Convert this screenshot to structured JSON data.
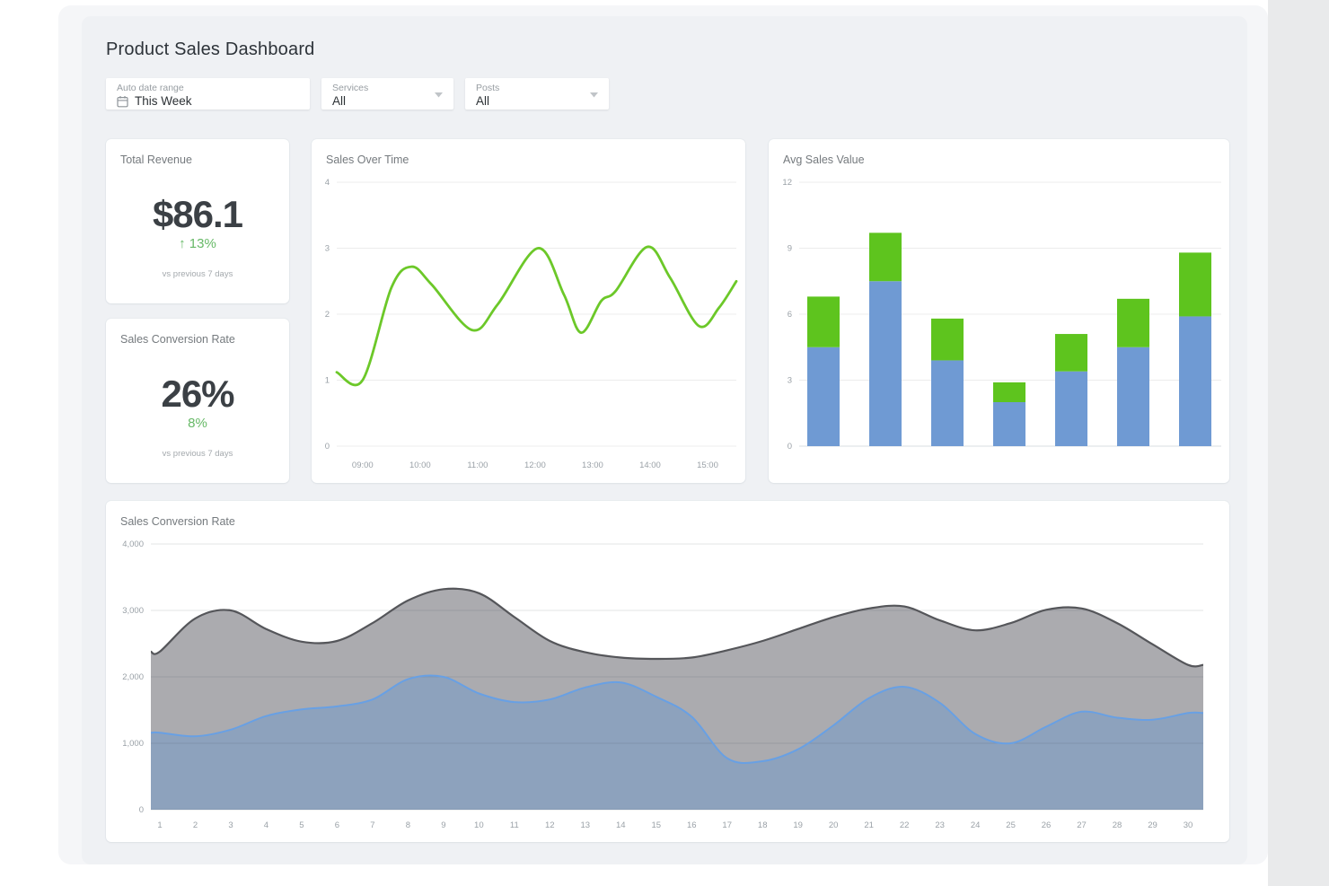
{
  "page": {
    "title": "Product Sales Dashboard"
  },
  "filters": {
    "date_range": {
      "label": "Auto date range",
      "value": "This Week"
    },
    "services": {
      "label": "Services",
      "value": "All"
    },
    "posts": {
      "label": "Posts",
      "value": "All"
    }
  },
  "kpis": [
    {
      "title": "Total Revenue",
      "value": "$86.1",
      "delta": "↑ 13%",
      "caption": "vs previous 7 days"
    },
    {
      "title": "Sales Conversion Rate",
      "value": "26%",
      "delta": "8%",
      "caption": "vs previous 7 days"
    }
  ],
  "colors": {
    "kpi_green": "#67b967",
    "line_green": "#6cc829",
    "bar_blue": "#6f9ad3",
    "bar_green": "#5ec41e",
    "area_gray_stroke": "#55565a",
    "area_blue_stroke": "#68a0e4",
    "panel_bg": "#eff1f4",
    "card_bg": "#ffffff"
  },
  "chart_data": [
    {
      "type": "line",
      "title": "Sales Over Time",
      "xlabel": "",
      "ylabel": "",
      "grid": true,
      "legend": "none",
      "x_domain_hours": [
        8.55,
        15.5
      ],
      "x_ticks": [
        {
          "hour": 9,
          "label": "09:00"
        },
        {
          "hour": 10,
          "label": "10:00"
        },
        {
          "hour": 11,
          "label": "11:00"
        },
        {
          "hour": 12,
          "label": "12:00"
        },
        {
          "hour": 13,
          "label": "13:00"
        },
        {
          "hour": 14,
          "label": "14:00"
        },
        {
          "hour": 15,
          "label": "15:00"
        }
      ],
      "y_ticks": [
        0,
        1,
        2,
        3,
        4
      ],
      "ylim": [
        0,
        4
      ],
      "line_color": "#6cc829",
      "points_hours_values": [
        [
          8.55,
          1.12
        ],
        [
          9.0,
          1.0
        ],
        [
          9.5,
          2.4
        ],
        [
          9.85,
          2.72
        ],
        [
          10.2,
          2.45
        ],
        [
          10.9,
          1.76
        ],
        [
          11.35,
          2.15
        ],
        [
          12.05,
          3.0
        ],
        [
          12.5,
          2.3
        ],
        [
          12.8,
          1.72
        ],
        [
          13.15,
          2.2
        ],
        [
          13.4,
          2.35
        ],
        [
          13.95,
          3.02
        ],
        [
          14.35,
          2.55
        ],
        [
          14.85,
          1.82
        ],
        [
          15.2,
          2.1
        ],
        [
          15.5,
          2.5
        ]
      ]
    },
    {
      "type": "bar",
      "title": "Avg Sales Value",
      "xlabel": "",
      "ylabel": "",
      "grid": true,
      "legend": "none",
      "stacked": true,
      "categories": [
        "",
        "",
        "",
        "",
        "",
        "",
        ""
      ],
      "y_ticks": [
        0,
        3,
        6,
        9,
        12
      ],
      "ylim": [
        0,
        12
      ],
      "series": [
        {
          "name": "base",
          "color": "#6f9ad3",
          "values": [
            4.5,
            7.5,
            3.9,
            2.0,
            3.4,
            4.5,
            5.9
          ]
        },
        {
          "name": "upper",
          "color": "#5ec41e",
          "values": [
            2.3,
            2.2,
            1.9,
            0.9,
            1.7,
            2.2,
            2.9
          ]
        }
      ],
      "totals": [
        6.8,
        9.7,
        5.8,
        2.9,
        5.1,
        6.7,
        8.8
      ]
    },
    {
      "type": "area",
      "title": "Sales Conversion Rate",
      "xlabel": "",
      "ylabel": "",
      "grid": true,
      "legend": "none",
      "x": [
        1,
        2,
        3,
        4,
        5,
        6,
        7,
        8,
        9,
        10,
        11,
        12,
        13,
        14,
        15,
        16,
        17,
        18,
        19,
        20,
        21,
        22,
        23,
        24,
        25,
        26,
        27,
        28,
        29,
        30
      ],
      "y_ticks": [
        0,
        1000,
        2000,
        3000,
        4000
      ],
      "y_tick_labels": [
        "0",
        "1,000",
        "2,000",
        "3,000",
        "4,000"
      ],
      "ylim": [
        0,
        4000
      ],
      "series": [
        {
          "name": "gray-area",
          "stroke": "#55565a",
          "fill": "rgba(148,148,153,0.78)",
          "values": [
            2380,
            2880,
            3000,
            2720,
            2530,
            2540,
            2810,
            3150,
            3320,
            3260,
            2900,
            2540,
            2370,
            2290,
            2270,
            2290,
            2400,
            2540,
            2720,
            2900,
            3030,
            3060,
            2850,
            2700,
            2810,
            3010,
            3030,
            2810,
            2490,
            2180
          ]
        },
        {
          "name": "blue-area",
          "stroke": "#68a0e4",
          "fill": "rgba(122,156,199,0.62)",
          "values": [
            1160,
            1105,
            1205,
            1410,
            1510,
            1555,
            1660,
            1965,
            2000,
            1750,
            1620,
            1660,
            1840,
            1915,
            1700,
            1400,
            775,
            730,
            910,
            1270,
            1680,
            1850,
            1610,
            1140,
            1000,
            1250,
            1475,
            1385,
            1355,
            1455
          ]
        }
      ]
    }
  ]
}
